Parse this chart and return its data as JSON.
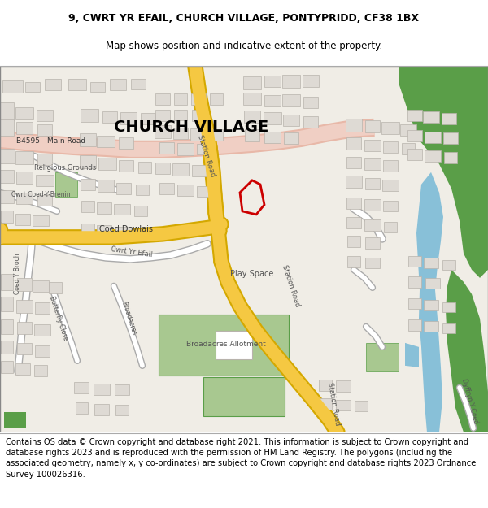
{
  "title_line1": "9, CWRT YR EFAIL, CHURCH VILLAGE, PONTYPRIDD, CF38 1BX",
  "title_line2": "Map shows position and indicative extent of the property.",
  "footer_text": "Contains OS data © Crown copyright and database right 2021. This information is subject to Crown copyright and database rights 2023 and is reproduced with the permission of HM Land Registry. The polygons (including the associated geometry, namely x, y co-ordinates) are subject to Crown copyright and database rights 2023 Ordnance Survey 100026316.",
  "title_fontsize": 9.0,
  "footer_fontsize": 7.2,
  "map_bg": "#f0ede6",
  "road_yellow": "#f5c842",
  "road_yellow_bg": "#f7e08a",
  "road_outline": "#d4a800",
  "road_white": "#ffffff",
  "road_white_bg": "#cccccc",
  "building_fill": "#dedad4",
  "building_stroke": "#b8b3ac",
  "green_light": "#c8ddb8",
  "green_med": "#a8c890",
  "green_dark": "#5a9e48",
  "water_blue": "#88c0d8",
  "water_light": "#b0d8f0",
  "salmon_road": "#e8b8a8",
  "salmon_road_bg": "#f0cfc4",
  "red_polygon": "#cc0000",
  "text_dark": "#333333",
  "text_mid": "#555555",
  "sep_color": "#aaaaaa",
  "church_village_label": "CHURCH VILLAGE",
  "b4595_label": "B4595 - Main Road",
  "coed_dowlais_label": "Coed Dowlais",
  "station_road_label": "Station Road",
  "religious_label": "Religious Grounds",
  "brenin_label": "Cwrt Coed-Y-Brenin",
  "coed_y_broch_label": "Coed Y Broch",
  "cwrt_yr_efail_label": "Cwrt Yr Efail",
  "play_space_label": "Play Space",
  "butterfly_label": "Butterfly Close",
  "broadacres_label": "Broadacres",
  "broadacres_allotment_label": "Broadacres Allotment",
  "dyffryn_label": "Dyffryn Y Coed"
}
